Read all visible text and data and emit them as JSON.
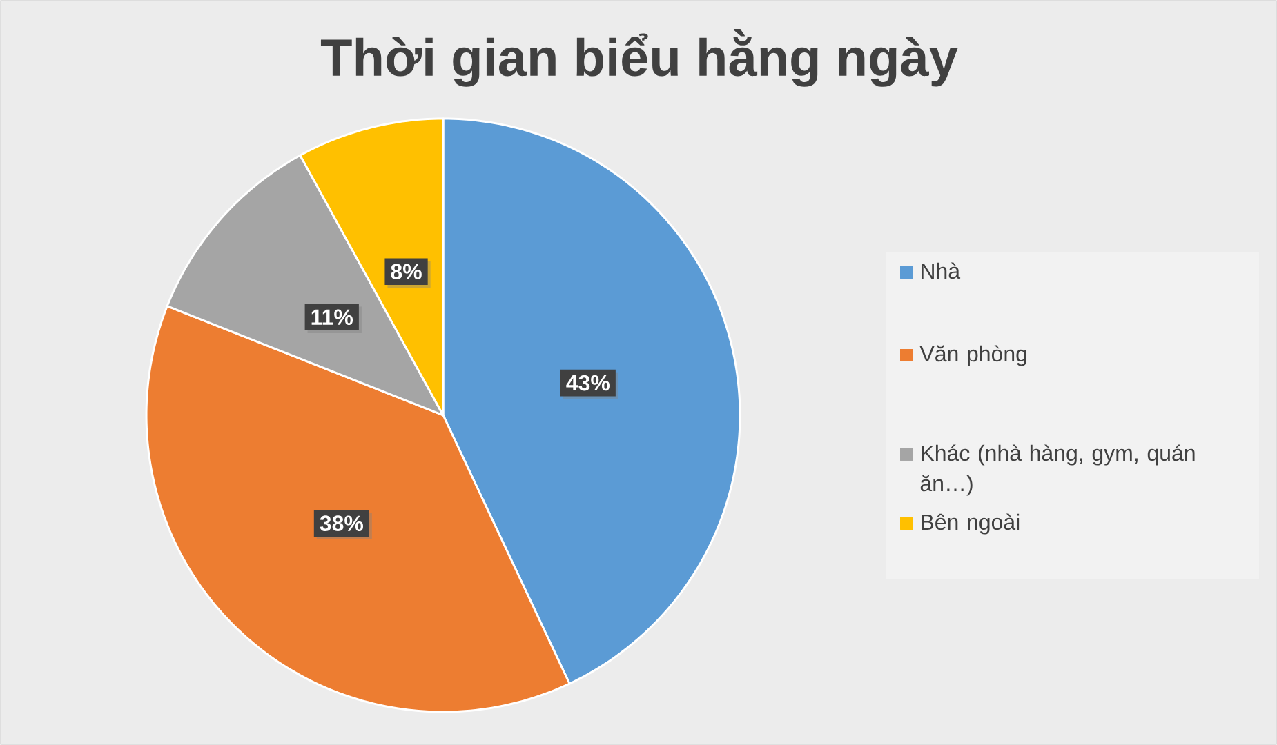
{
  "chart_data": {
    "type": "pie",
    "title": "Thời gian biểu hằng ngày",
    "categories": [
      "Nhà",
      "Văn phòng",
      "Khác (nhà hàng, gym, quán ăn…)",
      "Bên ngoài"
    ],
    "values": [
      43,
      38,
      11,
      8
    ],
    "colors": [
      "#5b9bd5",
      "#ed7d31",
      "#a5a5a5",
      "#ffc000"
    ],
    "value_labels": [
      "43%",
      "38%",
      "11%",
      "8%"
    ],
    "legend": "right"
  }
}
